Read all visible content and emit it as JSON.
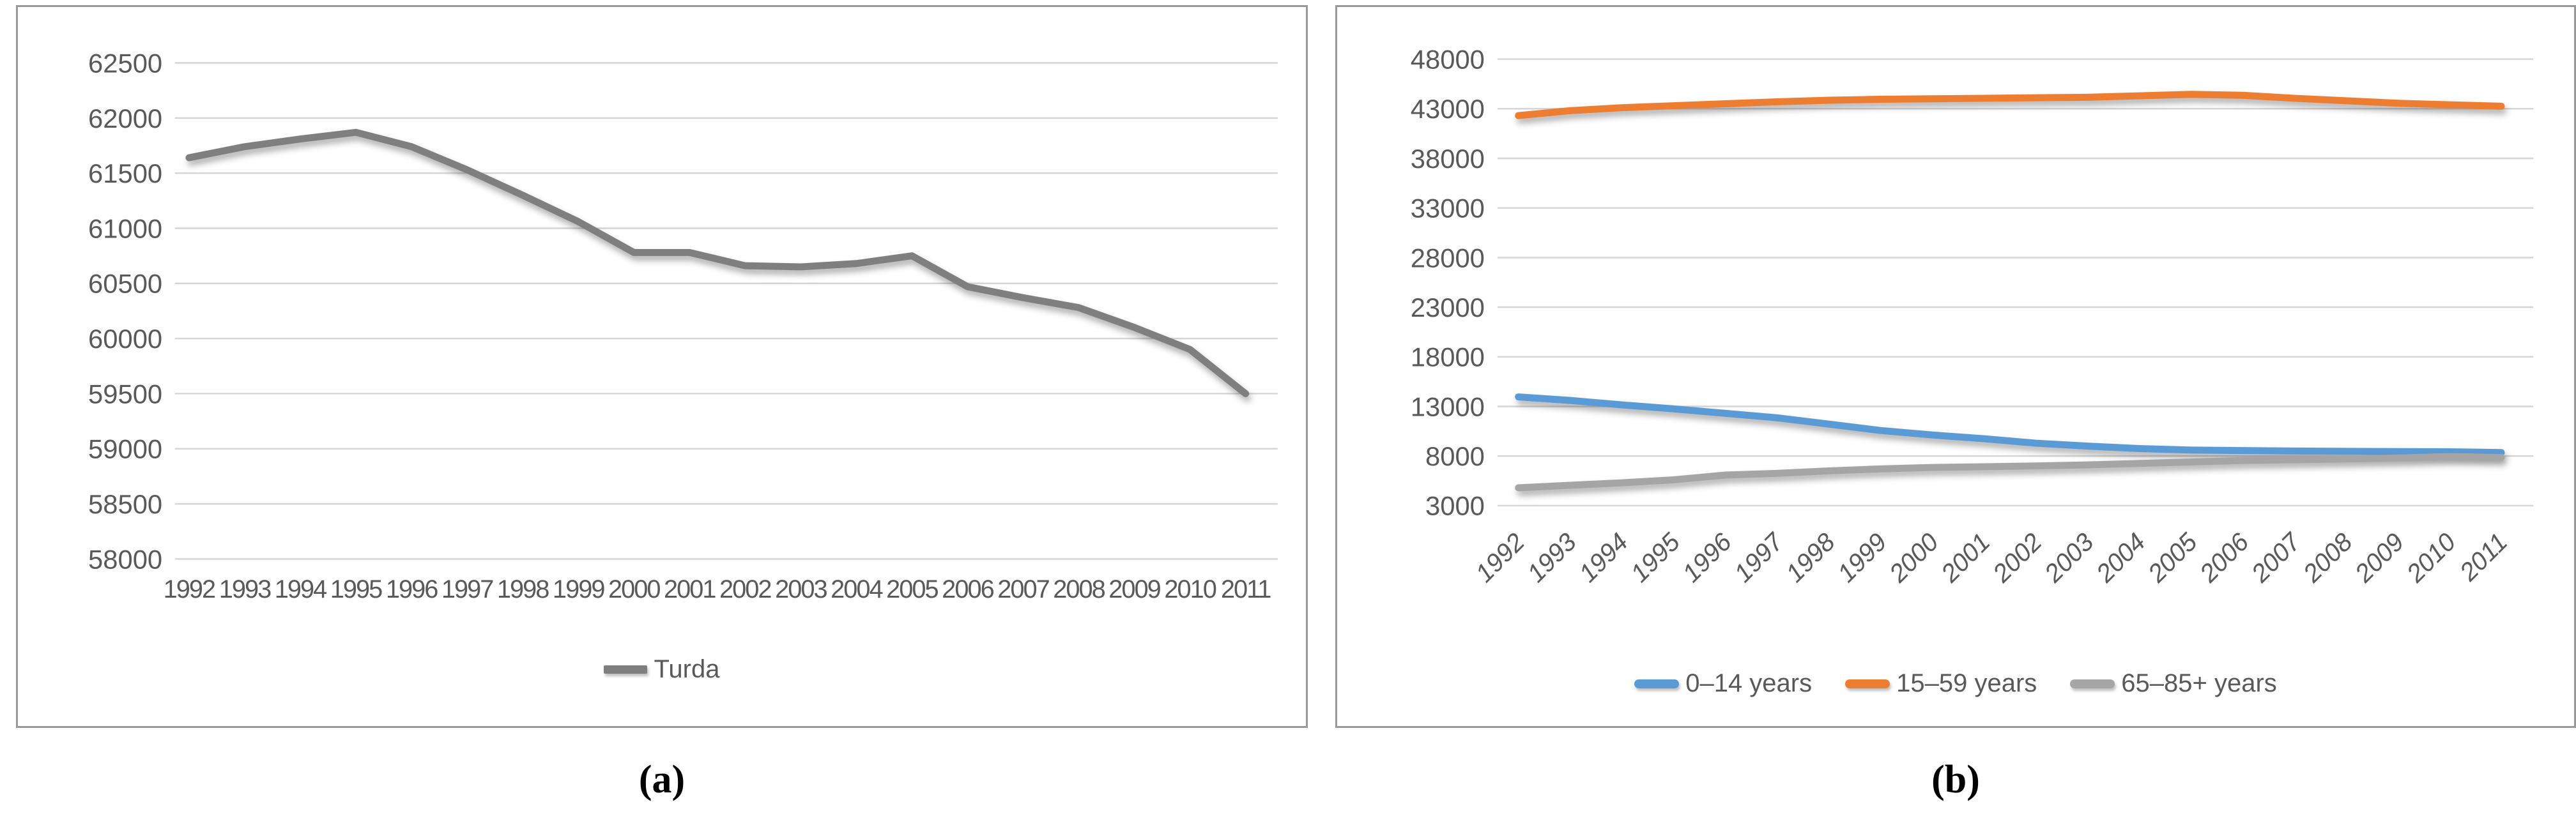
{
  "figure": {
    "caption_a": "(a)",
    "caption_b": "(b)",
    "colors": {
      "series_gray_a": "#7f7f7f",
      "series_blue": "#5b9bd5",
      "series_orange": "#ed7d31",
      "series_gray_b": "#a5a5a5",
      "gridline": "#d6d6d6",
      "tick_text": "#595959",
      "box_border": "#999999"
    }
  },
  "chart_data": [
    {
      "type": "line",
      "panel": "a",
      "title": "",
      "xlabel": "",
      "ylabel": "",
      "categories": [
        1992,
        1993,
        1994,
        1995,
        1996,
        1997,
        1998,
        1999,
        2000,
        2001,
        2002,
        2003,
        2004,
        2005,
        2006,
        2007,
        2008,
        2009,
        2010,
        2011
      ],
      "series": [
        {
          "name": "Turda",
          "color": "#7f7f7f",
          "values": [
            61640,
            61740,
            61810,
            61870,
            61740,
            61530,
            61300,
            61060,
            60780,
            60780,
            60660,
            60650,
            60680,
            60750,
            60470,
            60370,
            60280,
            60100,
            59900,
            59500
          ]
        }
      ],
      "ylim": [
        58000,
        62500
      ],
      "yticks": [
        62500,
        62000,
        61500,
        61000,
        60500,
        60000,
        59500,
        59000,
        58500,
        58000
      ],
      "grid": true,
      "legend_position": "bottom",
      "x_label_rotation": 0
    },
    {
      "type": "line",
      "panel": "b",
      "title": "",
      "xlabel": "",
      "ylabel": "",
      "categories": [
        1992,
        1993,
        1994,
        1995,
        1996,
        1997,
        1998,
        1999,
        2000,
        2001,
        2002,
        2003,
        2004,
        2005,
        2006,
        2007,
        2008,
        2009,
        2010,
        2011
      ],
      "series": [
        {
          "name": "0–14 years",
          "color": "#5b9bd5",
          "values": [
            13960,
            13600,
            13150,
            12750,
            12300,
            11850,
            11210,
            10570,
            10120,
            9740,
            9290,
            9000,
            8750,
            8600,
            8550,
            8500,
            8470,
            8450,
            8430,
            8350
          ]
        },
        {
          "name": "15–59 years",
          "color": "#ed7d31",
          "values": [
            42300,
            42800,
            43100,
            43300,
            43500,
            43700,
            43850,
            43950,
            44000,
            44050,
            44100,
            44150,
            44300,
            44450,
            44350,
            44050,
            43800,
            43550,
            43400,
            43250
          ]
        },
        {
          "name": "65–85+ years",
          "color": "#a5a5a5",
          "values": [
            4790,
            5050,
            5300,
            5600,
            6080,
            6250,
            6500,
            6700,
            6850,
            6920,
            7000,
            7100,
            7250,
            7400,
            7550,
            7620,
            7700,
            7800,
            7950,
            7850
          ]
        }
      ],
      "ylim": [
        3000,
        48000
      ],
      "yticks": [
        48000,
        43000,
        38000,
        33000,
        28000,
        23000,
        18000,
        13000,
        8000,
        3000
      ],
      "grid": true,
      "legend_position": "bottom",
      "x_label_rotation": -45
    }
  ]
}
